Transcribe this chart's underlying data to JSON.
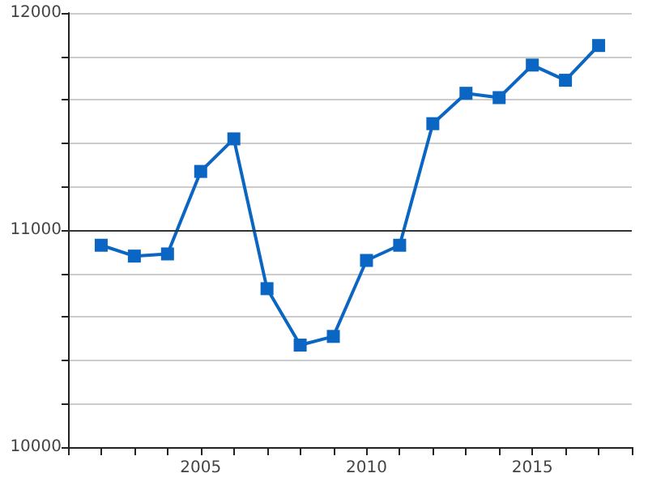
{
  "chart_data": {
    "type": "line",
    "x": [
      2002,
      2003,
      2004,
      2005,
      2006,
      2007,
      2008,
      2009,
      2010,
      2011,
      2012,
      2013,
      2014,
      2015,
      2016,
      2017
    ],
    "series": [
      {
        "color": "#0a66c2",
        "values": [
          10930,
          10880,
          10890,
          11270,
          11420,
          10730,
          10470,
          10510,
          10860,
          10930,
          11490,
          11630,
          11610,
          11760,
          11690,
          11850
        ]
      }
    ],
    "xlim": [
      2001,
      2018
    ],
    "xticks": [
      {
        "value": 2001,
        "label": null
      },
      {
        "value": 2002,
        "label": null
      },
      {
        "value": 2003,
        "label": null
      },
      {
        "value": 2004,
        "label": null
      },
      2005,
      {
        "value": 2006,
        "label": null
      },
      {
        "value": 2007,
        "label": null
      },
      {
        "value": 2008,
        "label": null
      },
      {
        "value": 2009,
        "label": null
      },
      2010,
      {
        "value": 2011,
        "label": null
      },
      {
        "value": 2012,
        "label": null
      },
      {
        "value": 2013,
        "label": null
      },
      {
        "value": 2014,
        "label": null
      },
      2015,
      {
        "value": 2016,
        "label": null
      },
      {
        "value": 2017,
        "label": null
      },
      {
        "value": 2018,
        "label": null
      }
    ],
    "ylim": [
      10000,
      12000
    ],
    "yticks": [
      10000,
      {
        "value": 10200,
        "label": null
      },
      {
        "value": 10400,
        "label": null
      },
      {
        "value": 10600,
        "label": null
      },
      {
        "value": 10800,
        "label": null
      },
      11000,
      {
        "value": 11200,
        "label": null
      },
      {
        "value": 11400,
        "label": null
      },
      {
        "value": 11600,
        "label": null
      },
      {
        "value": 11800,
        "label": null
      },
      12000
    ],
    "ref_lines": [
      {
        "axis": "y",
        "value": 11000,
        "color": "#333333"
      }
    ],
    "grid": "y",
    "marker": "square",
    "line_style": "solid"
  }
}
